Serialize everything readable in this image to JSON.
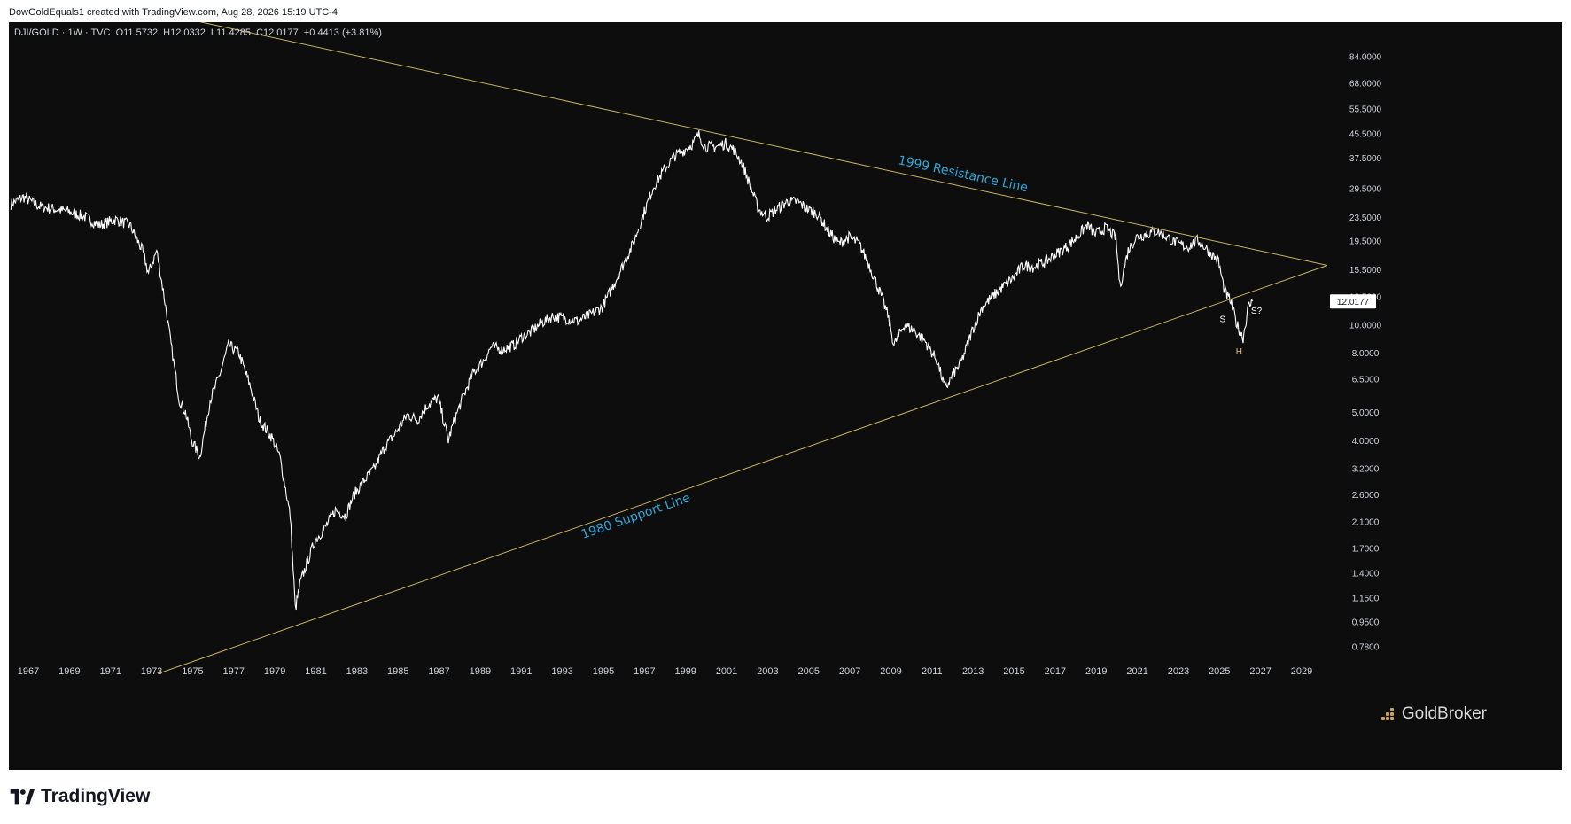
{
  "header": {
    "text": "DowGoldEquals1 created with TradingView.com, Aug 28, 2026 15:19 UTC-4"
  },
  "legend": {
    "symbol": "DJI/GOLD",
    "interval": "1W",
    "source": "TVC",
    "open": "O11.5732",
    "high": "H12.0332",
    "low": "L11.4285",
    "close": "C12.0177",
    "change": "+0.4413 (+3.81%)"
  },
  "brand": {
    "name": "GoldBroker"
  },
  "footer": {
    "logo_text": "TradingView"
  },
  "colors": {
    "background": "#0d0d0d",
    "price_line": "#ffffff",
    "trendline": "#c9b25c",
    "annotation_text": "#2aa8d8",
    "axis_text": "#d1d4dc",
    "pattern_label_s": "#ffffff",
    "pattern_label_h": "#e8c870"
  },
  "chart_data": {
    "type": "line",
    "scale": "log",
    "x_axis_ticks": [
      "1967",
      "1969",
      "1971",
      "1973",
      "1975",
      "1977",
      "1979",
      "1981",
      "1983",
      "1985",
      "1987",
      "1989",
      "1991",
      "1993",
      "1995",
      "1997",
      "1999",
      "2001",
      "2003",
      "2005",
      "2007",
      "2009",
      "2011",
      "2013",
      "2015",
      "2017",
      "2019",
      "2021",
      "2023",
      "2025",
      "2027",
      "2029"
    ],
    "y_axis_ticks": [
      "84.0000",
      "68.0000",
      "55.5000",
      "45.5000",
      "37.5000",
      "29.5000",
      "23.5000",
      "19.5000",
      "15.5000",
      "12.5000",
      "10.0000",
      "8.0000",
      "6.5000",
      "5.0000",
      "4.0000",
      "3.2000",
      "2.6000",
      "2.1000",
      "1.7000",
      "1.4000",
      "1.1500",
      "0.9500",
      "0.7800"
    ],
    "ylim": [
      0.72,
      110
    ],
    "xlim": [
      1966.1,
      2030.3
    ],
    "last_price": "12.0177",
    "series": [
      {
        "x": [
          1966.2,
          1966.8,
          1967.6,
          1968.3,
          1969.0,
          1969.8,
          1970.5,
          1971.3,
          1972.0,
          1972.6,
          1972.9,
          1973.3,
          1973.7,
          1974.0,
          1974.4,
          1974.7,
          1975.0,
          1975.4,
          1975.9,
          1976.3,
          1976.8,
          1977.3,
          1977.9,
          1978.3,
          1978.9,
          1979.3,
          1979.8,
          1980.05,
          1980.3,
          1980.6,
          1981.0,
          1981.5,
          1982.0,
          1982.5,
          1982.9,
          1983.4,
          1983.9,
          1984.4,
          1984.9,
          1985.5,
          1986.0,
          1986.5,
          1987.0,
          1987.5,
          1987.8,
          1988.2,
          1988.7,
          1989.2,
          1989.6,
          1990.1,
          1990.7,
          1991.1,
          1991.5,
          1992.0,
          1992.6,
          1993.2,
          1993.8,
          1994.4,
          1995.0,
          1995.5,
          1996.0,
          1996.5,
          1997.0,
          1997.5,
          1998.0,
          1998.5,
          1999.0,
          1999.4,
          1999.7,
          2000.0,
          2000.5,
          2001.0,
          2001.4,
          2001.8,
          2002.2,
          2002.6,
          2003.0,
          2003.5,
          2004.0,
          2004.5,
          2005.0,
          2005.5,
          2006.0,
          2006.5,
          2007.0,
          2007.5,
          2008.0,
          2008.5,
          2008.9,
          2009.2,
          2009.7,
          2010.2,
          2010.7,
          2011.3,
          2011.7,
          2012.0,
          2012.5,
          2013.0,
          2013.5,
          2014.0,
          2014.5,
          2015.0,
          2015.5,
          2016.0,
          2016.6,
          2017.1,
          2017.6,
          2018.1,
          2018.6,
          2019.0,
          2019.5,
          2020.0,
          2020.2,
          2020.6,
          2021.0,
          2021.5,
          2022.0,
          2022.5,
          2023.0,
          2023.5,
          2024.0,
          2024.5,
          2025.0,
          2025.3,
          2025.6,
          2025.9,
          2026.2,
          2026.45,
          2026.65
        ],
        "values": [
          26,
          27.5,
          25.5,
          25,
          24.5,
          23.5,
          22,
          23,
          22,
          18,
          15,
          18,
          12,
          8.5,
          5.5,
          5,
          4,
          3.5,
          5.5,
          6.5,
          8.5,
          8,
          6,
          4.7,
          4.1,
          3.5,
          2.2,
          1.05,
          1.3,
          1.5,
          1.8,
          2.0,
          2.3,
          2.2,
          2.6,
          2.9,
          3.2,
          3.8,
          4.2,
          4.9,
          4.7,
          5.3,
          5.6,
          4.0,
          4.7,
          5.6,
          6.8,
          7.5,
          8.4,
          8.2,
          8.5,
          9.1,
          9.4,
          10.1,
          10.7,
          10.5,
          10.3,
          10.8,
          11.5,
          13.5,
          16,
          19,
          24,
          30,
          34,
          38,
          40,
          42,
          45,
          41,
          41,
          42,
          40,
          36,
          30,
          25,
          23.5,
          25,
          26.5,
          26.5,
          25,
          24,
          21,
          19,
          20,
          19,
          16,
          13,
          10.8,
          8.5,
          10,
          9.5,
          8.8,
          7.5,
          6.0,
          6.6,
          7.5,
          9.5,
          11.5,
          12.5,
          13.5,
          14.5,
          16,
          15.8,
          16.5,
          17.5,
          18.5,
          20,
          22,
          20.5,
          21.5,
          20,
          13.5,
          18,
          20,
          20.5,
          21,
          20,
          19,
          18.5,
          19.5,
          18,
          16.5,
          13,
          12,
          10,
          9,
          11.5,
          12.0177
        ]
      }
    ],
    "trendlines": [
      {
        "name": "1999 Resistance Line",
        "x": [
          1973.0,
          2030.3
        ],
        "values": [
          120,
          16
        ]
      },
      {
        "name": "1980 Support Line",
        "x": [
          1973.4,
          2030.3
        ],
        "values": [
          0.63,
          16
        ]
      }
    ],
    "pattern_labels": [
      {
        "text": "S",
        "x": 2025.2,
        "value": 10.2
      },
      {
        "text": "H",
        "x": 2026.0,
        "value": 7.9
      },
      {
        "text": "S?",
        "x": 2026.85,
        "value": 10.9
      }
    ]
  }
}
